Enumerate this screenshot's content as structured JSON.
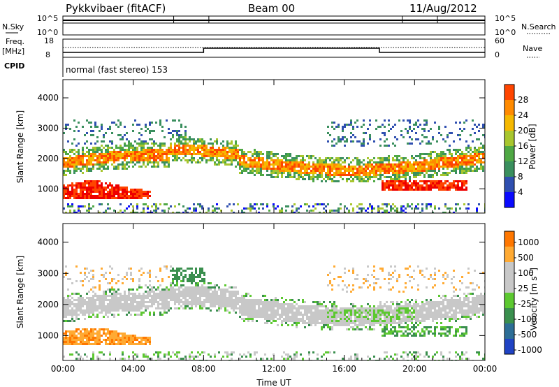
{
  "header": {
    "station": "Pykkvibaer (fitACF)",
    "beam": "Beam 00",
    "date": "11/Aug/2012"
  },
  "top_panels": {
    "nsky_label": "N.Sky",
    "nsearch_label": "N.Search",
    "nsky_ticks": [
      "10^5",
      "10^0"
    ],
    "nsearch_ticks": [
      "10^5",
      "10^0"
    ],
    "freq_label": "Freq.",
    "freq_unit": "[MHz]",
    "freq_ticks": [
      "18",
      "8"
    ],
    "nave_label": "Nave",
    "nave_ticks": [
      "60",
      "0"
    ],
    "cpid_label": "CPID",
    "cpid_text": "normal (fast stereo) 153"
  },
  "colors": {
    "power_scale": [
      "#0a0aff",
      "#2f4fb0",
      "#3a8f5e",
      "#4fa844",
      "#a8c62e",
      "#f5b800",
      "#ff8a00",
      "#ff4500",
      "#ee0000"
    ],
    "velocity_scale": [
      "#2043c4",
      "#2d6e96",
      "#3a8f4e",
      "#5cc830",
      "#c8c8c8",
      "#c8c8c8",
      "#ffaa33",
      "#ff7700",
      "#ee0000"
    ]
  },
  "chart_data": [
    {
      "type": "heatmap",
      "name": "power",
      "ylabel": "Slant Range [km]",
      "ylim": [
        200,
        4600
      ],
      "yticks": [
        1000,
        2000,
        3000,
        4000
      ],
      "x_range": [
        "00:00",
        "24:00"
      ],
      "colorbar": {
        "label": "Power [dB]",
        "range": [
          0,
          32
        ],
        "ticks": [
          "4",
          "8",
          "12",
          "16",
          "20",
          "24",
          "28"
        ]
      },
      "bands": [
        {
          "description_start": "00:00",
          "end": "05:00",
          "range_km": [
            700,
            1200
          ],
          "value_db": 28
        },
        {
          "start": "00:00",
          "end": "24:00",
          "range_km": [
            1400,
            2500
          ],
          "value_db": 18
        },
        {
          "start": "18:00",
          "end": "22:00",
          "range_km": [
            1000,
            1400
          ],
          "value_db": 28
        }
      ]
    },
    {
      "type": "heatmap",
      "name": "velocity",
      "ylabel": "Slant Range [km]",
      "xlabel": "Time UT",
      "ylim": [
        200,
        4600
      ],
      "yticks": [
        1000,
        2000,
        3000,
        4000
      ],
      "xticks": [
        "00:00",
        "04:00",
        "08:00",
        "12:00",
        "16:00",
        "20:00",
        "00:00"
      ],
      "colorbar": {
        "label": "Velocity [m s",
        "label_sup": "-1",
        "label_end": "]",
        "ticks": [
          "1000",
          "500",
          "100",
          "25",
          "-25",
          "-100",
          "-500",
          "-1000"
        ]
      }
    }
  ]
}
